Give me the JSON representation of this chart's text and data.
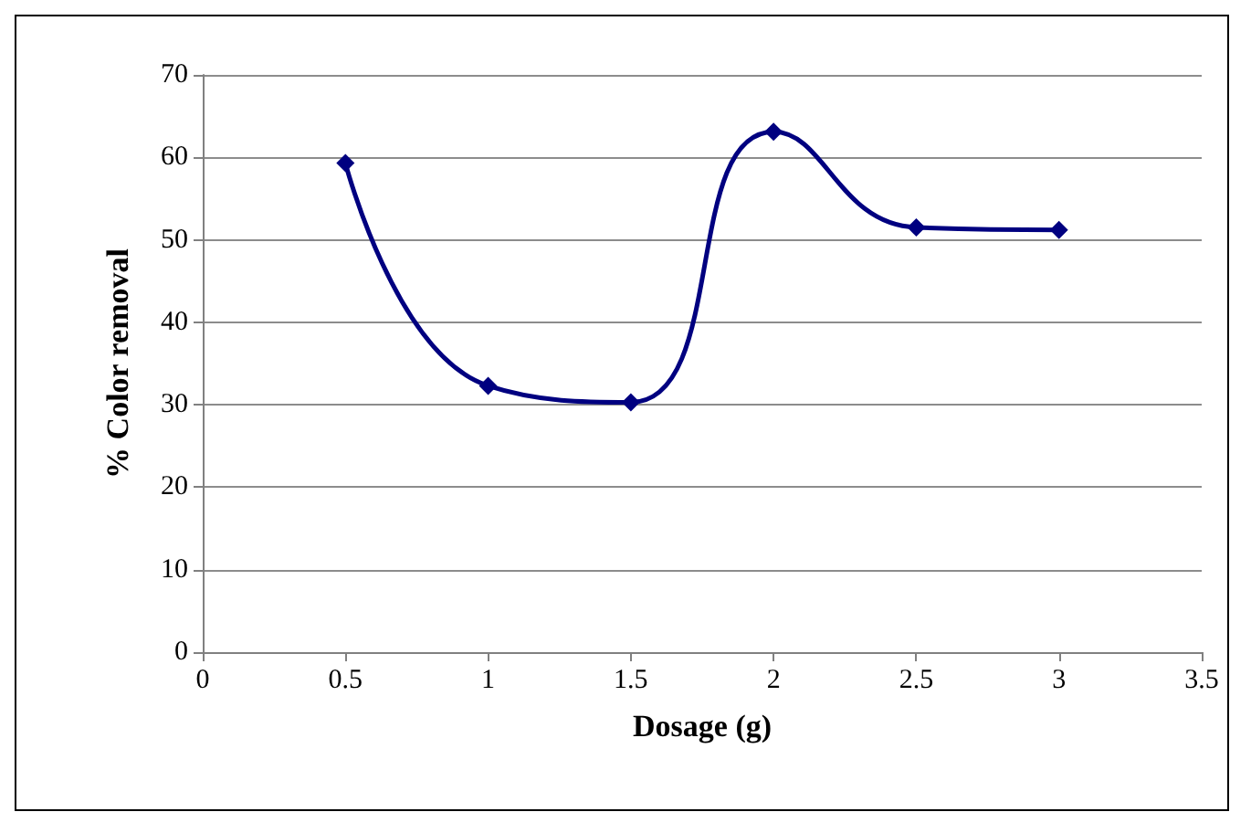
{
  "chart_data": {
    "type": "line",
    "xlabel": "Dosage (g)",
    "ylabel": "% Color removal",
    "x": [
      0.5,
      1,
      1.5,
      2,
      2.5,
      3
    ],
    "series": [
      {
        "color": "#000080",
        "values": [
          59.3,
          32.3,
          30.3,
          63.1,
          51.5,
          51.2
        ]
      }
    ],
    "xlim": [
      0,
      3.5
    ],
    "xticks": [
      0,
      0.5,
      1,
      1.5,
      2,
      2.5,
      3,
      3.5
    ],
    "ylim": [
      0,
      70
    ],
    "yticks": [
      0,
      10,
      20,
      30,
      40,
      50,
      60,
      70
    ],
    "grid": "y",
    "marker": "diamond",
    "line_style": "solid"
  }
}
